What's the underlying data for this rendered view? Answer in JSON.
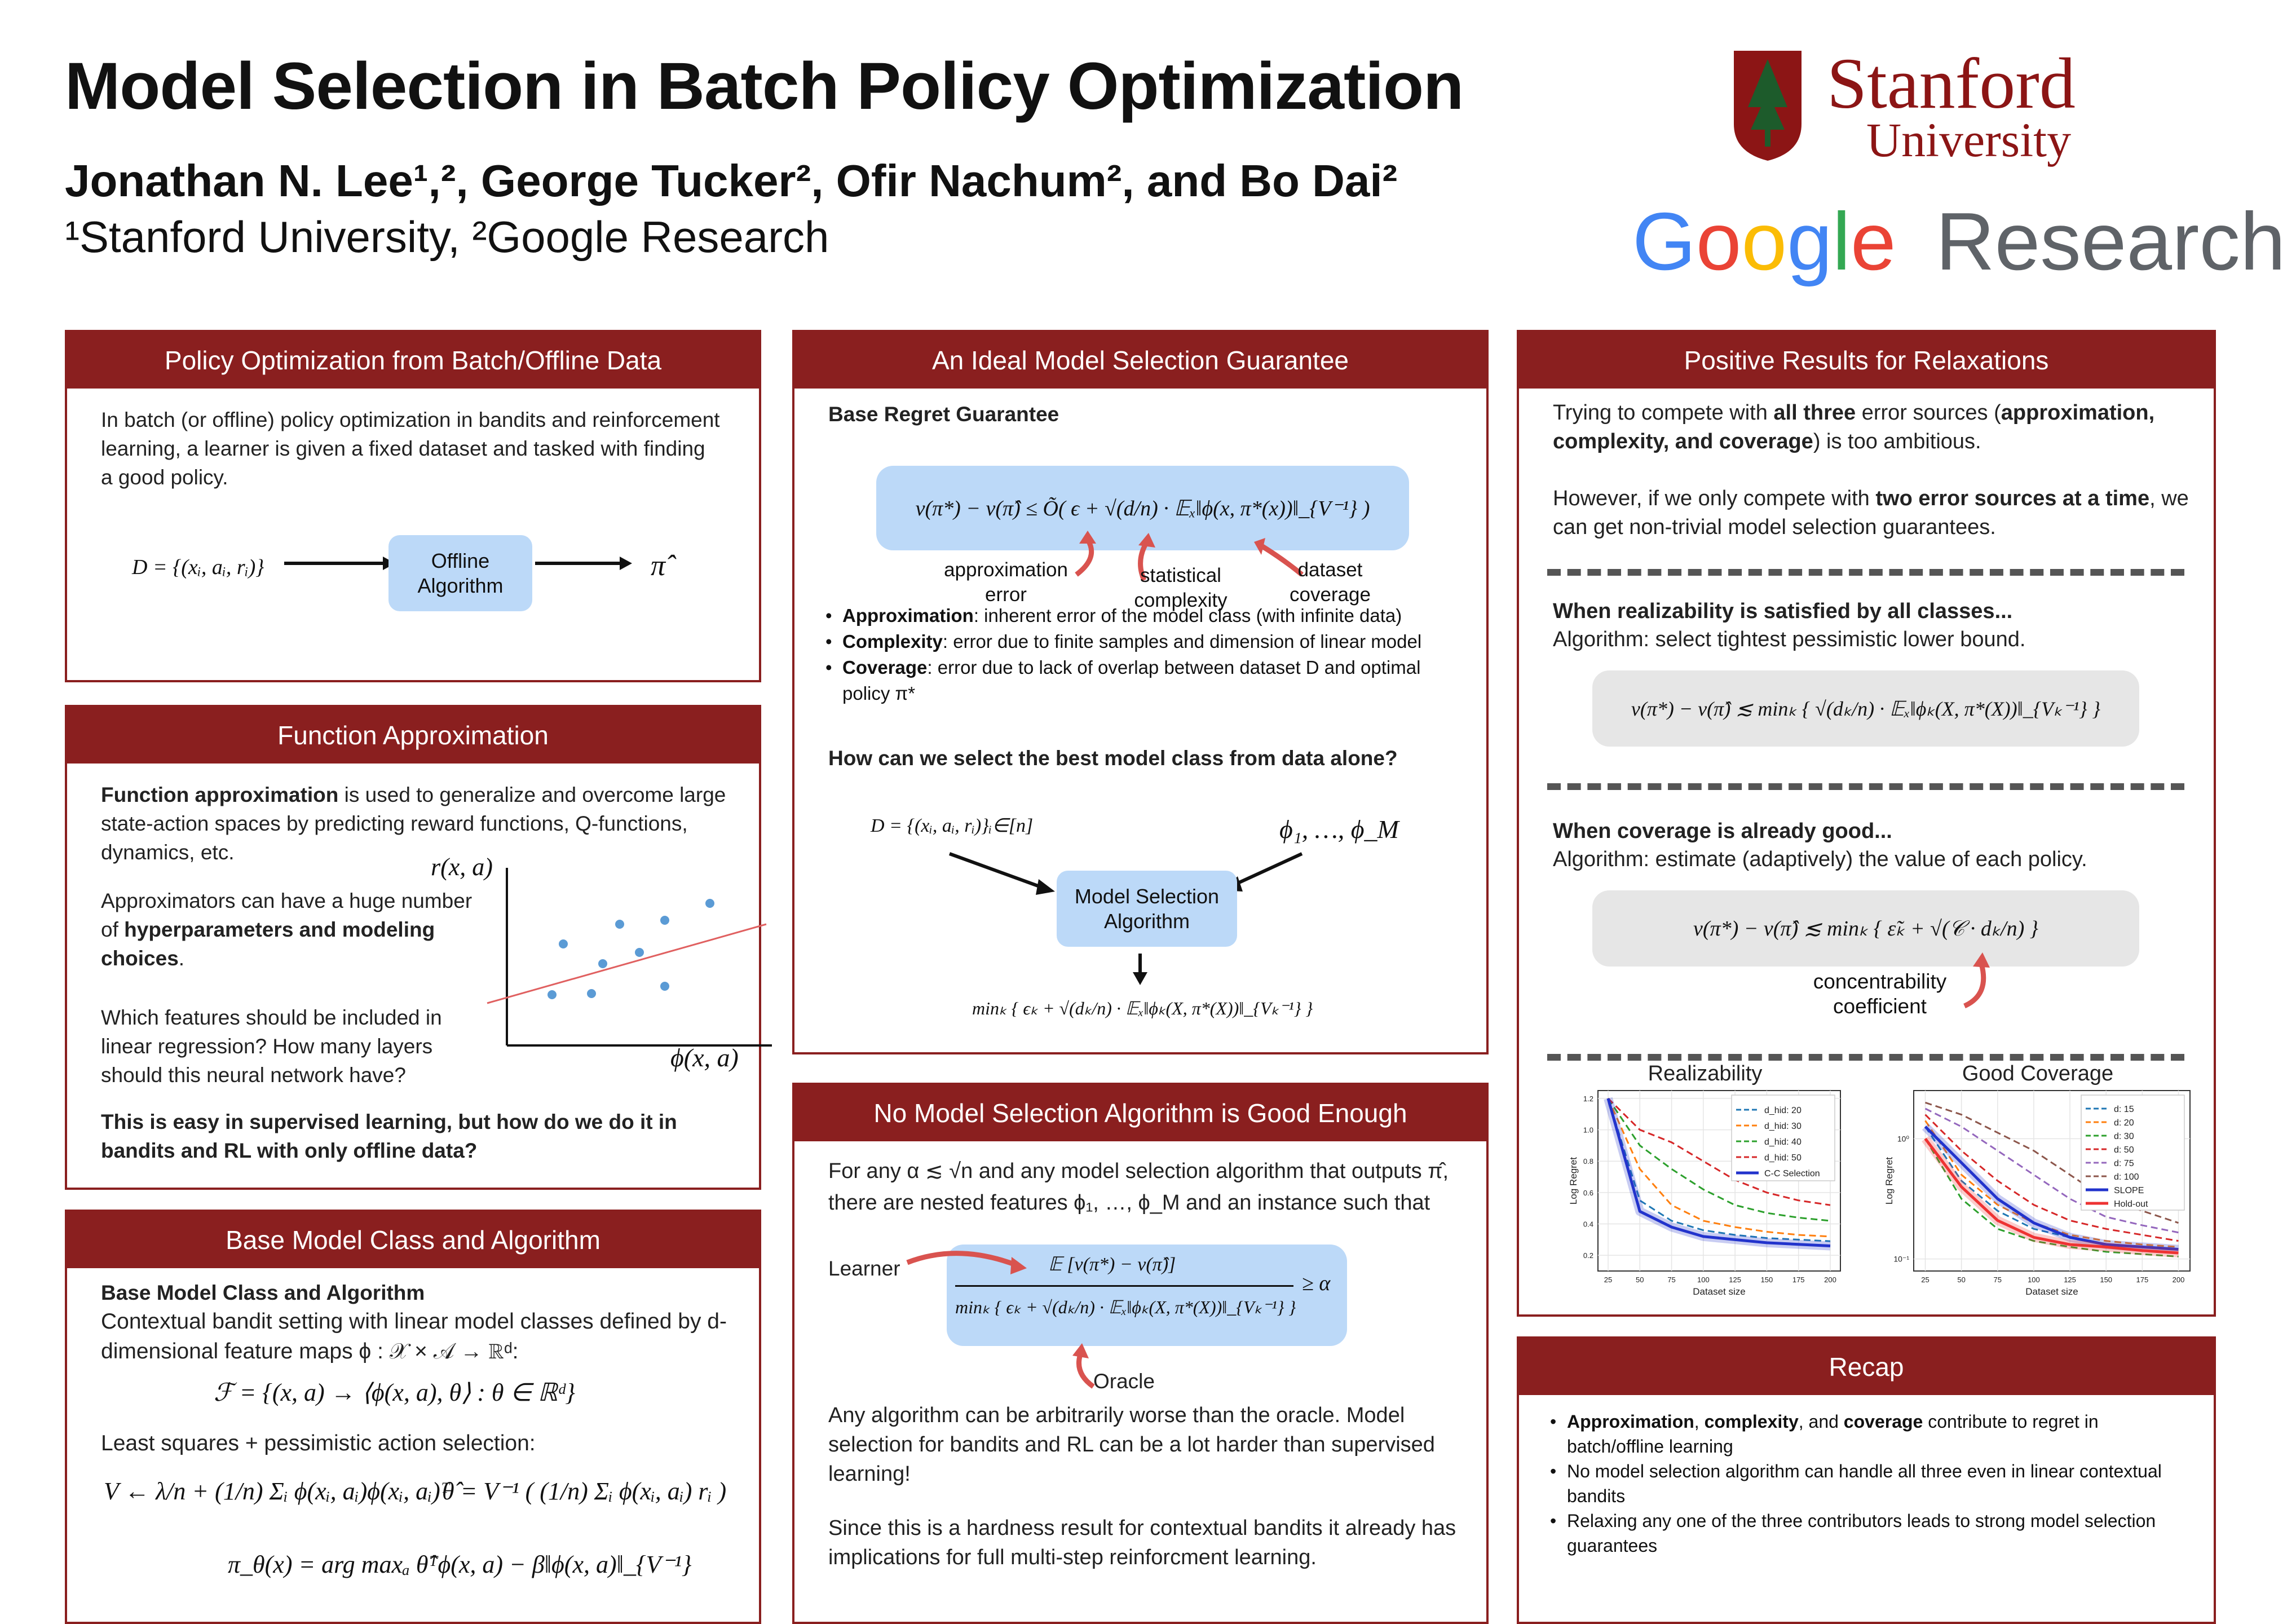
{
  "header": {
    "title": "Model Selection in Batch Policy Optimization",
    "authors": "Jonathan N. Lee¹,², George Tucker², Ofir Nachum², and Bo Dai²",
    "affiliations": "¹Stanford University, ²Google Research",
    "stanford_word": "Stanford",
    "stanford_sub": "University",
    "google_word": "Google",
    "research_word": "Research",
    "google_letters": [
      "G",
      "o",
      "o",
      "g",
      "l",
      "e"
    ],
    "google_colors": [
      "#4285F4",
      "#EA4335",
      "#FBBC05",
      "#4285F4",
      "#34A853",
      "#EA4335"
    ]
  },
  "colors": {
    "accent": "#8a1f1f",
    "box_blue": "#bcd9f8",
    "arrow_red": "#d9534f",
    "dot_blue": "#5b9bd5"
  },
  "p1": {
    "heading": "Policy Optimization from Batch/Offline Data",
    "text": "In batch (or offline) policy optimization in bandits and reinforcement learning, a learner is given a fixed dataset and tasked with finding a good policy.",
    "dataset": "D = {(xᵢ, aᵢ, rᵢ)}",
    "box": "Offline Algorithm",
    "output": "π̂"
  },
  "p2": {
    "heading": "Function Approximation",
    "t1_bold": "Function approximation",
    "t1": " is used to generalize and overcome large state-action spaces by predicting reward functions, Q-functions, dynamics, etc.",
    "t2a": "Approximators can have a huge number of ",
    "t2_bold": "hyperparameters and modeling choices",
    "t2b": ".",
    "t3": "Which features should be included in linear regression? How many layers should this neural network have?",
    "t4_bold": "This is easy in supervised learning, but how do we do it in bandits and RL with only offline data?",
    "ylabel": "r(x, a)",
    "xlabel": "ϕ(x, a)"
  },
  "p3": {
    "heading": "Base Model Class and Algorithm",
    "sub": "Base Model Class and Algorithm",
    "t1": "Contextual bandit setting with linear model classes defined by d-dimensional feature maps ϕ : 𝒳 × 𝒜 → ℝᵈ:",
    "eq1": "ℱ = {(x, a) → ⟨ϕ(x, a), θ⟩  :  θ ∈ ℝᵈ}",
    "t2": "Least squares + pessimistic action selection:",
    "eq2": "V ← λ/n + (1/n) Σᵢ ϕ(xᵢ, aᵢ)ϕ(xᵢ, aᵢ)ᵀ",
    "eq3": "θ̂ = V⁻¹ ( (1/n) Σᵢ ϕ(xᵢ, aᵢ) rᵢ )",
    "eq4": "π_θ(x) = arg maxₐ θ̂ᵀϕ(x, a) − β‖ϕ(x, a)‖_{V⁻¹}"
  },
  "p4": {
    "heading": "An Ideal Model Selection Guarantee",
    "sub": "Base Regret Guarantee",
    "eq": "v(π*) − v(π̂) ≤ Õ( ϵ + √(d/n) · 𝔼ₓ‖ϕ(x, π*(x))‖_{V⁻¹} )",
    "lab_approx": "approximation error",
    "lab_stat": "statistical complexity",
    "lab_cov": "dataset coverage",
    "bullets": [
      {
        "b": "Approximation",
        "t": ": inherent error of the model class (with infinite data)"
      },
      {
        "b": "Complexity",
        "t": ": error due to finite samples and dimension of linear model"
      },
      {
        "b": "Coverage",
        "t": ": error due to lack of overlap between dataset D and optimal policy π*"
      }
    ],
    "question": "How can we select the best model class from data alone?",
    "in_data": "D = {(xᵢ, aᵢ, rᵢ)}ᵢ∈[n]",
    "in_feat": "ϕ₁, …, ϕ_M",
    "box": "Model Selection Algorithm",
    "out": "minₖ { ϵₖ + √(dₖ/n) · 𝔼ₓ‖ϕₖ(X, π*(X))‖_{Vₖ⁻¹} }"
  },
  "p5": {
    "heading": "No Model Selection Algorithm is Good Enough",
    "t1": "For any α ≲ √n and any model selection algorithm that outputs π̂, there are nested features ϕ₁, …, ϕ_M and an instance such that",
    "learner": "Learner",
    "oracle": "Oracle",
    "num": "𝔼 [v(π*) − v(π̂)]",
    "den": "minₖ { ϵₖ + √(dₖ/n) · 𝔼ₓ‖ϕₖ(X, π*(X))‖_{Vₖ⁻¹} }",
    "rhs": "≥ α",
    "t2": "Any algorithm can be arbitrarily worse than the oracle. Model selection for bandits and RL can be a lot harder than supervised learning!",
    "t3": "Since this is a hardness result for contextual bandits it already has implications for full multi-step reinforcment learning."
  },
  "p6": {
    "heading": "Positive Results for Relaxations",
    "t1a": "Trying to compete with ",
    "t1b": "all three",
    "t1c": " error sources (",
    "t1d": "approximation, complexity, and coverage",
    "t1e": ") is too ambitious.",
    "t2a": "However, if we only compete with ",
    "t2b": "two error sources at a time",
    "t2c": ", we can get non-trivial model selection guarantees.",
    "s1_bold": "When realizability is satisfied by all classes...",
    "s1": "Algorithm: select tightest pessimistic lower bound.",
    "eq1": "v(π*) − v(π̂) ≲ minₖ { √(dₖ/n) · 𝔼ₓ‖ϕₖ(X, π*(X))‖_{Vₖ⁻¹} }",
    "s2_bold": "When coverage is already good...",
    "s2": "Algorithm: estimate (adaptively) the value of each policy.",
    "eq2": "v(π*) − v(π̂) ≲ minₖ { ε̃ₖ + √(𝒞 · dₖ/n) }",
    "conc": "concentrability coefficient"
  },
  "chart_data": [
    {
      "type": "line",
      "title": "Realizability",
      "xlabel": "Dataset size",
      "ylabel": "Log Regret",
      "x": [
        25,
        50,
        75,
        100,
        125,
        150,
        175,
        200
      ],
      "xticks": [
        "25",
        "50",
        "75",
        "100",
        "125",
        "150",
        "175",
        "200"
      ],
      "ylim": [
        0.1,
        1.25
      ],
      "yticks": [
        "0.2",
        "0.4",
        "0.6",
        "0.8",
        "1.0",
        "1.2"
      ],
      "legend": "top-right",
      "series": [
        {
          "name": "d_hid: 20",
          "dash": true,
          "color": "#1f77b4",
          "values": [
            1.2,
            0.55,
            0.42,
            0.36,
            0.33,
            0.31,
            0.3,
            0.29
          ]
        },
        {
          "name": "d_hid: 30",
          "dash": true,
          "color": "#ff7f0e",
          "values": [
            1.2,
            0.75,
            0.52,
            0.42,
            0.38,
            0.35,
            0.33,
            0.32
          ]
        },
        {
          "name": "d_hid: 40",
          "dash": true,
          "color": "#2ca02c",
          "values": [
            1.2,
            0.9,
            0.75,
            0.62,
            0.52,
            0.47,
            0.44,
            0.42
          ]
        },
        {
          "name": "d_hid: 50",
          "dash": true,
          "color": "#d62728",
          "values": [
            1.2,
            1.0,
            0.92,
            0.8,
            0.68,
            0.6,
            0.55,
            0.52
          ]
        },
        {
          "name": "C-C Selection",
          "dash": false,
          "color": "#2233cc",
          "values": [
            1.2,
            0.48,
            0.38,
            0.32,
            0.3,
            0.28,
            0.27,
            0.26
          ]
        }
      ]
    },
    {
      "type": "line",
      "title": "Good Coverage",
      "xlabel": "Dataset size",
      "ylabel": "Log Regret",
      "x": [
        25,
        50,
        75,
        100,
        125,
        150,
        175,
        200
      ],
      "xticks": [
        "25",
        "50",
        "75",
        "100",
        "125",
        "150",
        "175",
        "200"
      ],
      "ylim": [
        -1.1,
        0.4
      ],
      "yticks": [
        "10⁰",
        "10⁻¹"
      ],
      "log": true,
      "legend": "top-right",
      "series": [
        {
          "name": "d: 15",
          "dash": true,
          "color": "#1f77b4",
          "values": [
            0.1,
            -0.35,
            -0.6,
            -0.75,
            -0.82,
            -0.88,
            -0.9,
            -0.92
          ]
        },
        {
          "name": "d: 20",
          "dash": true,
          "color": "#ff7f0e",
          "values": [
            0.15,
            -0.3,
            -0.55,
            -0.7,
            -0.8,
            -0.85,
            -0.88,
            -0.9
          ]
        },
        {
          "name": "d: 30",
          "dash": true,
          "color": "#2ca02c",
          "values": [
            0.0,
            -0.5,
            -0.75,
            -0.85,
            -0.9,
            -0.94,
            -0.96,
            -0.98
          ]
        },
        {
          "name": "d: 50",
          "dash": true,
          "color": "#d62728",
          "values": [
            0.2,
            -0.1,
            -0.35,
            -0.55,
            -0.68,
            -0.75,
            -0.8,
            -0.85
          ]
        },
        {
          "name": "d: 75",
          "dash": true,
          "color": "#9467bd",
          "values": [
            0.25,
            0.1,
            -0.1,
            -0.3,
            -0.5,
            -0.65,
            -0.72,
            -0.78
          ]
        },
        {
          "name": "d: 100",
          "dash": true,
          "color": "#8c564b",
          "values": [
            0.3,
            0.2,
            0.05,
            -0.1,
            -0.3,
            -0.5,
            -0.6,
            -0.7
          ]
        },
        {
          "name": "SLOPE",
          "dash": false,
          "color": "#2233cc",
          "values": [
            0.1,
            -0.2,
            -0.5,
            -0.7,
            -0.82,
            -0.88,
            -0.9,
            -0.92
          ]
        },
        {
          "name": "Hold-out",
          "dash": false,
          "color": "#ee3333",
          "values": [
            0.0,
            -0.4,
            -0.68,
            -0.82,
            -0.88,
            -0.9,
            -0.93,
            -0.95
          ]
        }
      ]
    }
  ],
  "p7": {
    "heading": "Recap",
    "bullets": [
      [
        {
          "b": "Approximation"
        },
        {
          "t": ", "
        },
        {
          "b": "complexity"
        },
        {
          "t": ", and "
        },
        {
          "b": "coverage"
        },
        {
          "t": " contribute to regret in batch/offline learning"
        }
      ],
      [
        {
          "t": "No model selection algorithm can handle all three even in linear contextual bandits"
        }
      ],
      [
        {
          "t": "Relaxing any one of the three contributors leads to strong model selection guarantees"
        }
      ]
    ]
  }
}
